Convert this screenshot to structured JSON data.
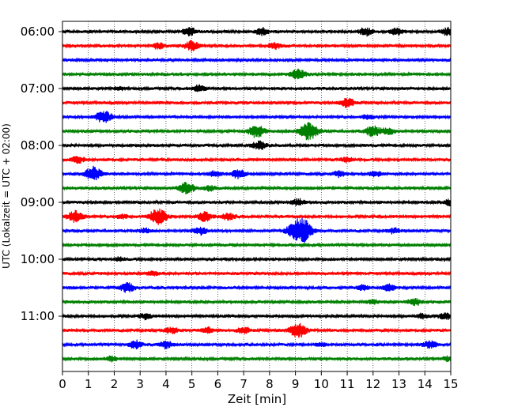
{
  "chart_data": {
    "type": "line",
    "title": "",
    "xlabel": "Zeit  [min]",
    "ylabel": "UTC (Lokalzeit = UTC + 02:00)",
    "xlim": [
      0,
      15
    ],
    "xticks": [
      "0",
      "1",
      "2",
      "3",
      "4",
      "5",
      "6",
      "7",
      "8",
      "9",
      "10",
      "11",
      "12",
      "13",
      "14",
      "15"
    ],
    "yticks": [
      "06:00",
      "07:00",
      "08:00",
      "09:00",
      "10:00",
      "11:00"
    ],
    "grid": "vertical-dotted",
    "trace_interval_minutes": 15,
    "start_time": "06:00",
    "colors": [
      "#000000",
      "#ff0000",
      "#0000ff",
      "#008000"
    ],
    "traces": [
      {
        "time": "06:00",
        "color": "#000000",
        "bursts": [
          [
            4.9,
            1.1
          ],
          [
            7.7,
            1.0
          ],
          [
            11.7,
            1.1
          ],
          [
            12.9,
            0.9
          ],
          [
            14.9,
            1.0
          ]
        ]
      },
      {
        "time": "06:15",
        "color": "#ff0000",
        "bursts": [
          [
            5.0,
            1.3
          ],
          [
            3.7,
            0.8
          ],
          [
            8.2,
            0.8
          ]
        ]
      },
      {
        "time": "06:30",
        "color": "#0000ff",
        "bursts": []
      },
      {
        "time": "06:45",
        "color": "#008000",
        "bursts": [
          [
            9.1,
            1.5
          ]
        ]
      },
      {
        "time": "07:00",
        "color": "#000000",
        "bursts": [
          [
            5.3,
            1.0
          ],
          [
            2.2,
            0.5
          ]
        ]
      },
      {
        "time": "07:15",
        "color": "#ff0000",
        "bursts": [
          [
            11.0,
            1.3
          ]
        ]
      },
      {
        "time": "07:30",
        "color": "#0000ff",
        "bursts": [
          [
            1.6,
            1.8
          ],
          [
            11.8,
            0.6
          ]
        ]
      },
      {
        "time": "07:45",
        "color": "#008000",
        "bursts": [
          [
            7.5,
            1.7
          ],
          [
            9.5,
            2.4
          ],
          [
            12.0,
            1.5
          ],
          [
            12.6,
            0.9
          ]
        ]
      },
      {
        "time": "08:00",
        "color": "#000000",
        "bursts": [
          [
            7.6,
            1.1
          ]
        ]
      },
      {
        "time": "08:15",
        "color": "#ff0000",
        "bursts": [
          [
            0.6,
            0.9
          ],
          [
            11.0,
            0.7
          ]
        ]
      },
      {
        "time": "08:30",
        "color": "#0000ff",
        "bursts": [
          [
            1.2,
            2.0
          ],
          [
            6.8,
            1.3
          ],
          [
            5.9,
            0.9
          ],
          [
            10.7,
            0.8
          ],
          [
            12.1,
            0.7
          ]
        ]
      },
      {
        "time": "08:45",
        "color": "#008000",
        "bursts": [
          [
            4.8,
            1.6
          ],
          [
            5.7,
            0.7
          ]
        ]
      },
      {
        "time": "09:00",
        "color": "#000000",
        "bursts": [
          [
            9.1,
            0.9
          ],
          [
            15.0,
            0.9
          ]
        ]
      },
      {
        "time": "09:15",
        "color": "#ff0000",
        "bursts": [
          [
            0.5,
            1.6
          ],
          [
            3.7,
            2.2
          ],
          [
            5.5,
            1.4
          ],
          [
            6.4,
            1.0
          ],
          [
            2.3,
            0.6
          ]
        ]
      },
      {
        "time": "09:30",
        "color": "#0000ff",
        "bursts": [
          [
            9.1,
            3.0
          ],
          [
            9.4,
            1.4
          ],
          [
            5.3,
            1.1
          ],
          [
            3.2,
            0.6
          ],
          [
            12.8,
            0.7
          ]
        ]
      },
      {
        "time": "09:45",
        "color": "#008000",
        "bursts": []
      },
      {
        "time": "10:00",
        "color": "#000000",
        "bursts": [
          [
            2.2,
            0.5
          ]
        ]
      },
      {
        "time": "10:15",
        "color": "#ff0000",
        "bursts": [
          [
            3.5,
            0.6
          ]
        ]
      },
      {
        "time": "10:30",
        "color": "#0000ff",
        "bursts": [
          [
            2.5,
            1.3
          ],
          [
            12.6,
            1.0
          ],
          [
            11.6,
            0.7
          ]
        ]
      },
      {
        "time": "10:45",
        "color": "#008000",
        "bursts": [
          [
            13.6,
            1.0
          ],
          [
            12.0,
            0.6
          ]
        ]
      },
      {
        "time": "11:00",
        "color": "#000000",
        "bursts": [
          [
            3.2,
            0.8
          ],
          [
            14.8,
            0.9
          ],
          [
            13.9,
            0.6
          ]
        ]
      },
      {
        "time": "11:15",
        "color": "#ff0000",
        "bursts": [
          [
            9.1,
            2.0
          ],
          [
            7.0,
            0.9
          ],
          [
            4.2,
            0.8
          ],
          [
            5.6,
            0.8
          ]
        ]
      },
      {
        "time": "11:30",
        "color": "#0000ff",
        "bursts": [
          [
            2.8,
            1.1
          ],
          [
            4.0,
            1.0
          ],
          [
            14.2,
            1.0
          ],
          [
            10.0,
            0.5
          ]
        ]
      },
      {
        "time": "11:45",
        "color": "#008000",
        "bursts": [
          [
            1.9,
            0.7
          ],
          [
            14.9,
            0.6
          ]
        ]
      }
    ]
  }
}
